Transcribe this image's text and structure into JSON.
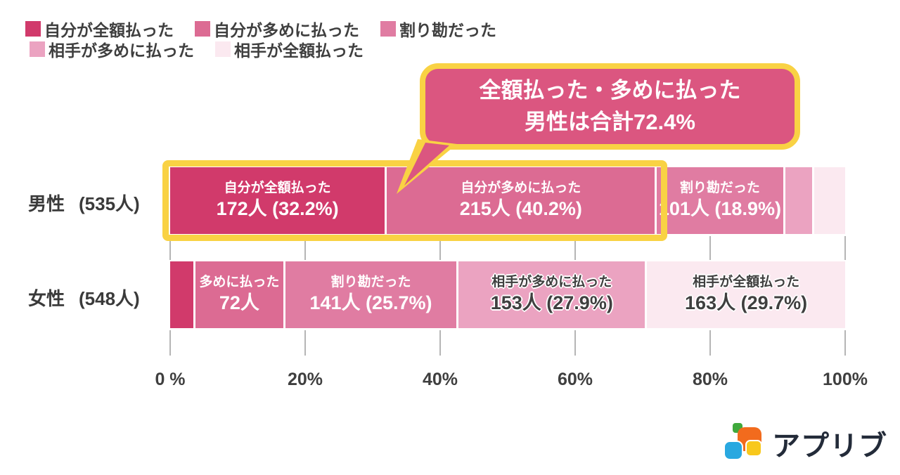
{
  "legend": {
    "rows": [
      [
        {
          "label": "自分が全額払った",
          "color": "#D13A6B"
        },
        {
          "label": "自分が多めに払った",
          "color": "#DC6B93"
        },
        {
          "label": "割り勘だった",
          "color": "#E07CA2"
        }
      ],
      [
        {
          "label": "相手が多めに払った",
          "color": "#EBA3C1"
        },
        {
          "label": "相手が全額払った",
          "color": "#FBE9F0"
        }
      ]
    ]
  },
  "callout": {
    "line1": "全額払った・多めに払った",
    "line2": "男性は合計72.4%",
    "bg": "#DB5680",
    "border": "#F9D244",
    "text_color": "#ffffff"
  },
  "rows": [
    {
      "name": "男性",
      "count_label": "(535人)"
    },
    {
      "name": "女性",
      "count_label": "(548人)"
    }
  ],
  "axis": {
    "ticks": [
      {
        "label": "0 %",
        "percent": 0
      },
      {
        "label": "20%",
        "percent": 20
      },
      {
        "label": "40%",
        "percent": 40
      },
      {
        "label": "60%",
        "percent": 60
      },
      {
        "label": "80%",
        "percent": 80
      },
      {
        "label": "100%",
        "percent": 100
      }
    ]
  },
  "logo": {
    "text": "アプリブ",
    "text_color": "#232B39",
    "icon_colors": {
      "green": "#3FA93C",
      "orange": "#F26B1D",
      "blue": "#29A8E0",
      "yellow": "#F8C81C"
    }
  },
  "chart_data": {
    "type": "bar",
    "stacked": true,
    "orientation": "horizontal",
    "unit": "人",
    "categories": [
      "自分が全額払った",
      "自分が多めに払った",
      "割り勘だった",
      "相手が多めに払った",
      "相手が全額払った"
    ],
    "colors": [
      "#D13A6B",
      "#DC6B93",
      "#E07CA2",
      "#EBA3C1",
      "#FBE9F0"
    ],
    "x_range": [
      0,
      100
    ],
    "x_ticks": [
      "0 %",
      "20%",
      "40%",
      "60%",
      "80%",
      "100%"
    ],
    "legend_position": "top-left",
    "series": [
      {
        "name": "男性",
        "total": 535,
        "segments": [
          {
            "category": "自分が全額払った",
            "count": 172,
            "percent": 32.2,
            "label": "自分が全額払った",
            "value_label": "172人 (32.2%)",
            "text": "light",
            "estimated": false
          },
          {
            "category": "自分が多めに払った",
            "count": 215,
            "percent": 40.2,
            "label": "自分が多めに払った",
            "value_label": "215人 (40.2%)",
            "text": "light",
            "estimated": false
          },
          {
            "category": "割り勘だった",
            "count": 101,
            "percent": 18.9,
            "label": "割り勘だった",
            "value_label": "101人 (18.9%)",
            "text": "light",
            "estimated": false
          },
          {
            "category": "相手が多めに払った",
            "count": 22,
            "percent": 4.1,
            "label": "",
            "value_label": "",
            "text": "light",
            "estimated": true
          },
          {
            "category": "相手が全額払った",
            "count": 25,
            "percent": 4.6,
            "label": "",
            "value_label": "",
            "text": "dark",
            "estimated": true
          }
        ],
        "highlight": {
          "segment_indices": [
            0,
            1
          ],
          "combined_percent": 72.4
        }
      },
      {
        "name": "女性",
        "total": 548,
        "segments": [
          {
            "category": "自分が全額払った",
            "count": 19,
            "percent": 3.5,
            "label": "",
            "value_label": "",
            "text": "light",
            "estimated": true
          },
          {
            "category": "自分が多めに払った",
            "count": 72,
            "percent": 13.1,
            "label": "多めに払った",
            "value_label": "72人",
            "text": "light",
            "estimated": false
          },
          {
            "category": "割り勘だった",
            "count": 141,
            "percent": 25.7,
            "label": "割り勘だった",
            "value_label": "141人 (25.7%)",
            "text": "light",
            "estimated": false
          },
          {
            "category": "相手が多めに払った",
            "count": 153,
            "percent": 27.9,
            "label": "相手が多めに払った",
            "value_label": "153人 (27.9%)",
            "text": "dark",
            "estimated": false
          },
          {
            "category": "相手が全額払った",
            "count": 163,
            "percent": 29.7,
            "label": "相手が全額払った",
            "value_label": "163人 (29.7%)",
            "text": "dark",
            "estimated": false
          }
        ]
      }
    ],
    "annotation": {
      "text": "全額払った・多めに払った 男性は合計72.4%",
      "applies_to": "男性 segments 1+2"
    }
  }
}
